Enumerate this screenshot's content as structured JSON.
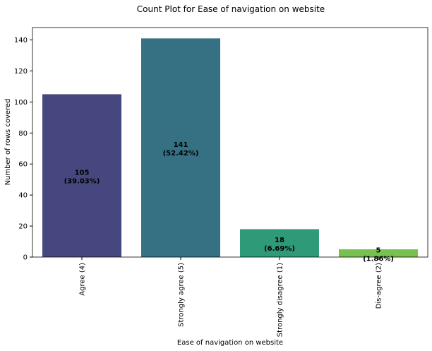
{
  "chart_data": {
    "type": "bar",
    "title": "Count Plot for Ease of navigation on website",
    "xlabel": "Ease of navigation on website",
    "ylabel": "Number of rows covered",
    "categories": [
      "Agree (4)",
      "Strongly agree (5)",
      "Strongly disagree (1)",
      "Dis-agree (2)"
    ],
    "values": [
      105,
      141,
      18,
      5
    ],
    "value_labels": [
      "105",
      "141",
      "18",
      "5"
    ],
    "percent_labels": [
      "(39.03%)",
      "(52.42%)",
      "(6.69%)",
      "(1.86%)"
    ],
    "colors": [
      "#46477f",
      "#357083",
      "#2f9a77",
      "#78c150"
    ],
    "ylim": [
      0,
      148
    ],
    "yticks": [
      0,
      20,
      40,
      60,
      80,
      100,
      120,
      140
    ],
    "grid": false,
    "legend": "none"
  }
}
